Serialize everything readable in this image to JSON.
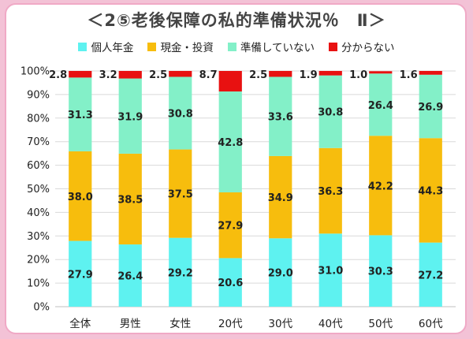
{
  "chart_data": {
    "type": "bar",
    "stacked": true,
    "percent": true,
    "title": "＜2⑤老後保障の私的準備状況％　Ⅱ＞",
    "categories": [
      "全体",
      "男性",
      "女性",
      "20代",
      "30代",
      "40代",
      "50代",
      "60代"
    ],
    "series": [
      {
        "name": "個人年金",
        "color": "#5ef2f0",
        "values": [
          27.9,
          26.4,
          29.2,
          20.6,
          29.0,
          31.0,
          30.3,
          27.2
        ]
      },
      {
        "name": "現金・投資",
        "color": "#f7bd0d",
        "values": [
          38.0,
          38.5,
          37.5,
          27.9,
          34.9,
          36.3,
          42.2,
          44.3
        ]
      },
      {
        "name": "準備していない",
        "color": "#83f0c8",
        "values": [
          31.3,
          31.9,
          30.8,
          42.8,
          33.6,
          30.8,
          26.4,
          26.9
        ]
      },
      {
        "name": "分からない",
        "color": "#e81111",
        "values": [
          2.8,
          3.2,
          2.5,
          8.7,
          2.5,
          1.9,
          1.0,
          1.6
        ]
      }
    ],
    "ylim": [
      0,
      100
    ],
    "yticks": [
      "0%",
      "10%",
      "20%",
      "30%",
      "40%",
      "50%",
      "60%",
      "70%",
      "80%",
      "90%",
      "100%"
    ],
    "legend_position": "top",
    "grid": true
  }
}
